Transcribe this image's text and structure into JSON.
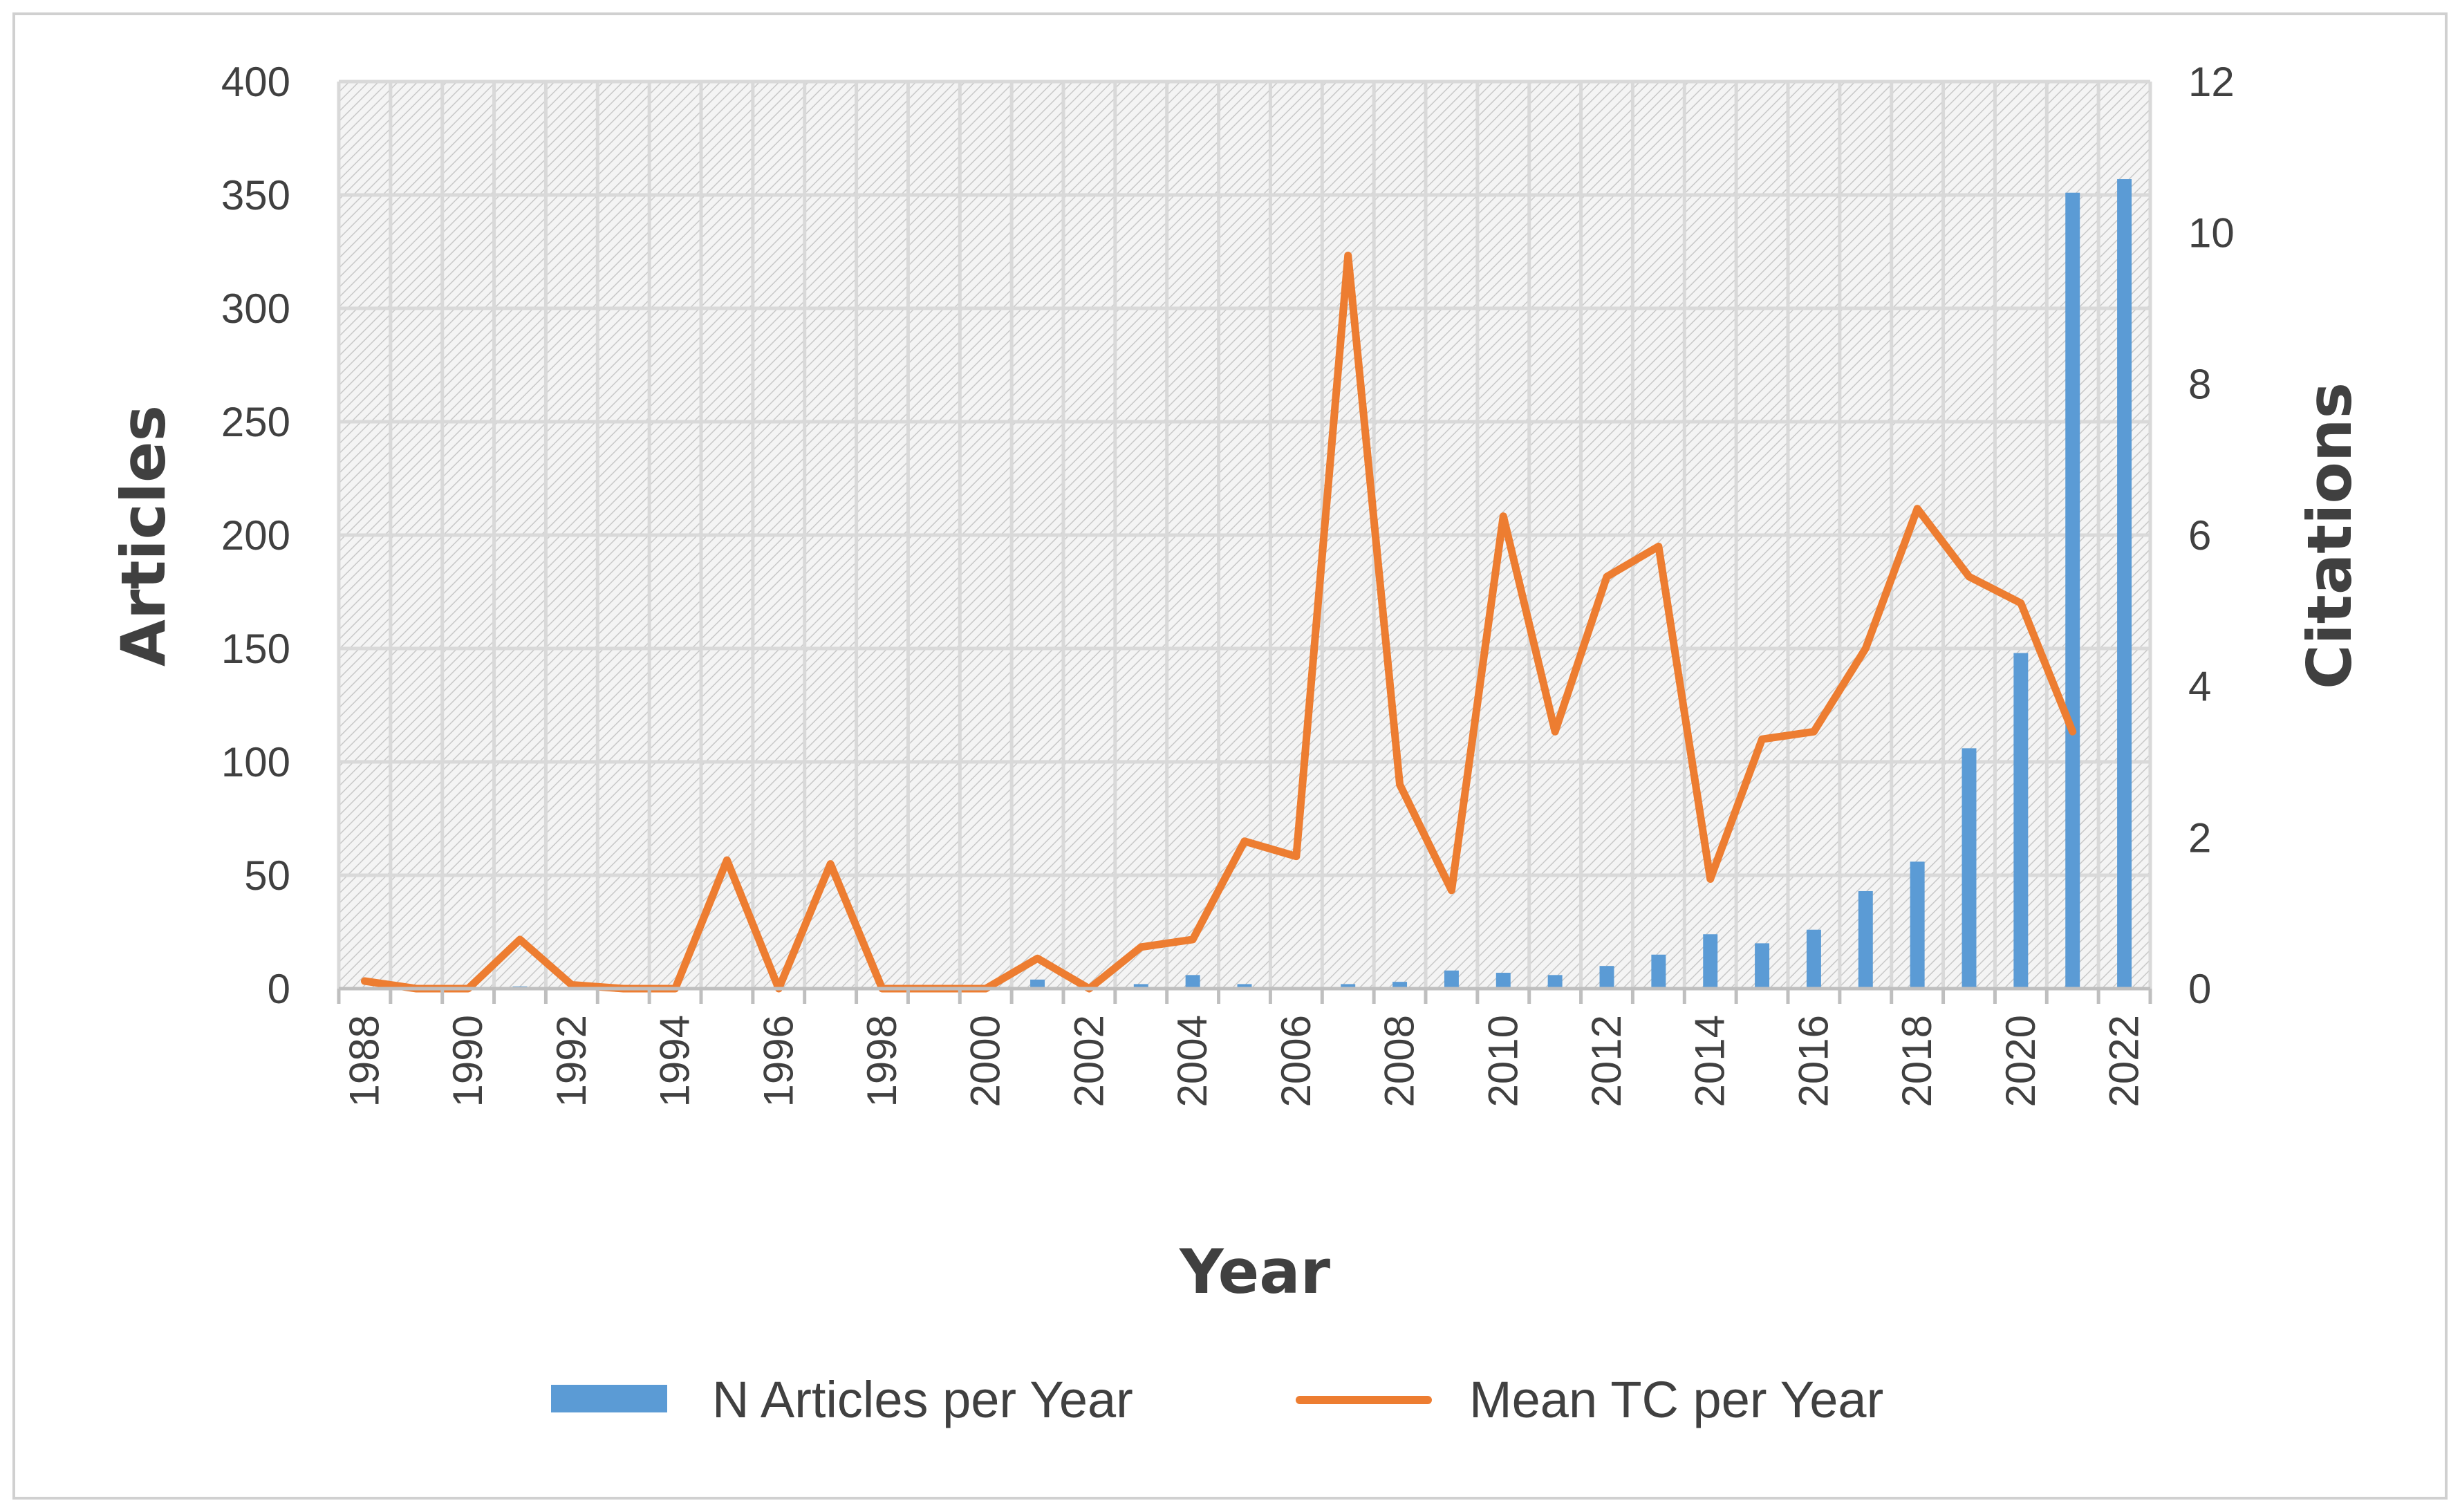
{
  "chart_data": {
    "type": "bar+line",
    "title": "",
    "xlabel": "Year",
    "ylabel_left": "Articles",
    "ylabel_right": "Citations",
    "ylim_left": [
      0,
      400
    ],
    "ylim_right": [
      0,
      12
    ],
    "yticks_left": [
      0,
      50,
      100,
      150,
      200,
      250,
      300,
      350,
      400
    ],
    "yticks_right": [
      0,
      2,
      4,
      6,
      8,
      10,
      12
    ],
    "years": [
      1988,
      1989,
      1990,
      1991,
      1992,
      1993,
      1994,
      1995,
      1996,
      1997,
      1998,
      1999,
      2000,
      2001,
      2002,
      2003,
      2004,
      2005,
      2006,
      2007,
      2008,
      2009,
      2010,
      2011,
      2012,
      2013,
      2014,
      2015,
      2016,
      2017,
      2018,
      2019,
      2020,
      2021,
      2022
    ],
    "xtick_labels": [
      "1988",
      "1990",
      "1992",
      "1994",
      "1996",
      "1998",
      "2000",
      "2002",
      "2004",
      "2006",
      "2008",
      "2010",
      "2012",
      "2014",
      "2016",
      "2018",
      "2020",
      "2022"
    ],
    "grid": true,
    "legend_position": "bottom",
    "series": [
      {
        "name": "N Articles per Year",
        "type": "bar",
        "axis": "left",
        "color": "#5B9BD5",
        "values": [
          0,
          0,
          0,
          1,
          0,
          0,
          0,
          0,
          0,
          0,
          0,
          0,
          0,
          4,
          0,
          2,
          6,
          2,
          0,
          2,
          3,
          8,
          7,
          6,
          10,
          15,
          24,
          20,
          26,
          43,
          56,
          106,
          148,
          351,
          357
        ]
      },
      {
        "name": "Mean TC per Year",
        "type": "line",
        "axis": "right",
        "color": "#ED7D31",
        "values": [
          0.1,
          0,
          0,
          0.65,
          0.05,
          0,
          0,
          1.7,
          0,
          1.65,
          0,
          0,
          0,
          0.4,
          0,
          0.55,
          0.65,
          1.95,
          1.75,
          9.7,
          2.7,
          1.3,
          6.25,
          3.4,
          5.45,
          5.85,
          1.45,
          3.3,
          3.4,
          4.5,
          6.35,
          5.45,
          5.1,
          3.4,
          null
        ]
      }
    ]
  }
}
